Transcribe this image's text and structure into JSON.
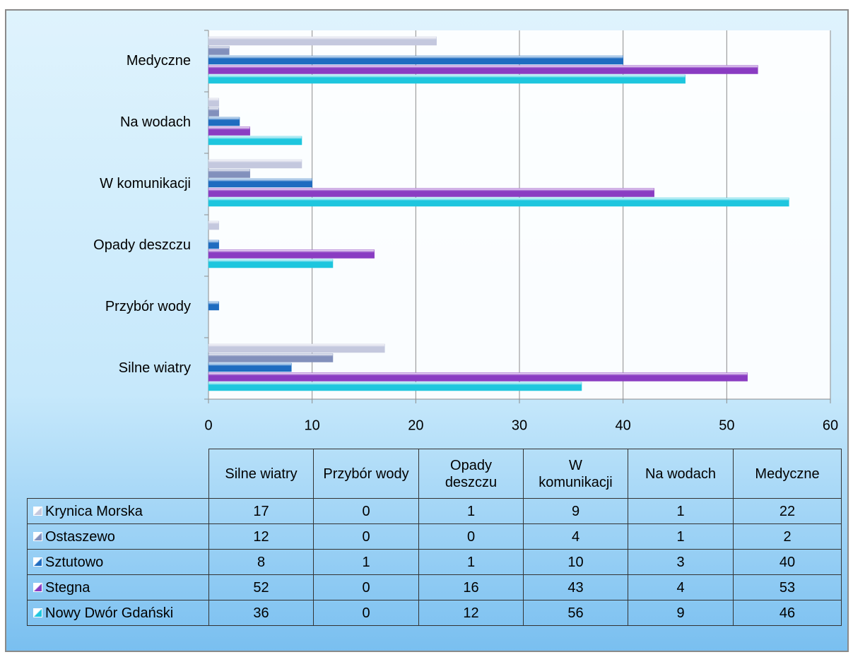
{
  "chart_data": {
    "type": "bar",
    "orientation": "horizontal",
    "categories": [
      "Silne wiatry",
      "Przybór wody",
      "Opady deszczu",
      "W komunikacji",
      "Na wodach",
      "Medyczne"
    ],
    "series": [
      {
        "name": "Krynica Morska",
        "color": "#c4c8de",
        "values": [
          17,
          0,
          1,
          9,
          1,
          22
        ]
      },
      {
        "name": "Ostaszewo",
        "color": "#8290bc",
        "values": [
          12,
          0,
          0,
          4,
          1,
          2
        ]
      },
      {
        "name": "Sztutowo",
        "color": "#1f6cc0",
        "values": [
          8,
          1,
          1,
          10,
          3,
          40
        ]
      },
      {
        "name": "Stegna",
        "color": "#8a3cc2",
        "values": [
          52,
          0,
          16,
          43,
          4,
          53
        ]
      },
      {
        "name": "Nowy Dwór Gdański",
        "color": "#1ec6de",
        "values": [
          36,
          0,
          12,
          56,
          9,
          46
        ]
      }
    ],
    "xlim": [
      0,
      60
    ],
    "xticks": [
      0,
      10,
      20,
      30,
      40,
      50,
      60
    ],
    "grid": true,
    "data_table": true
  }
}
